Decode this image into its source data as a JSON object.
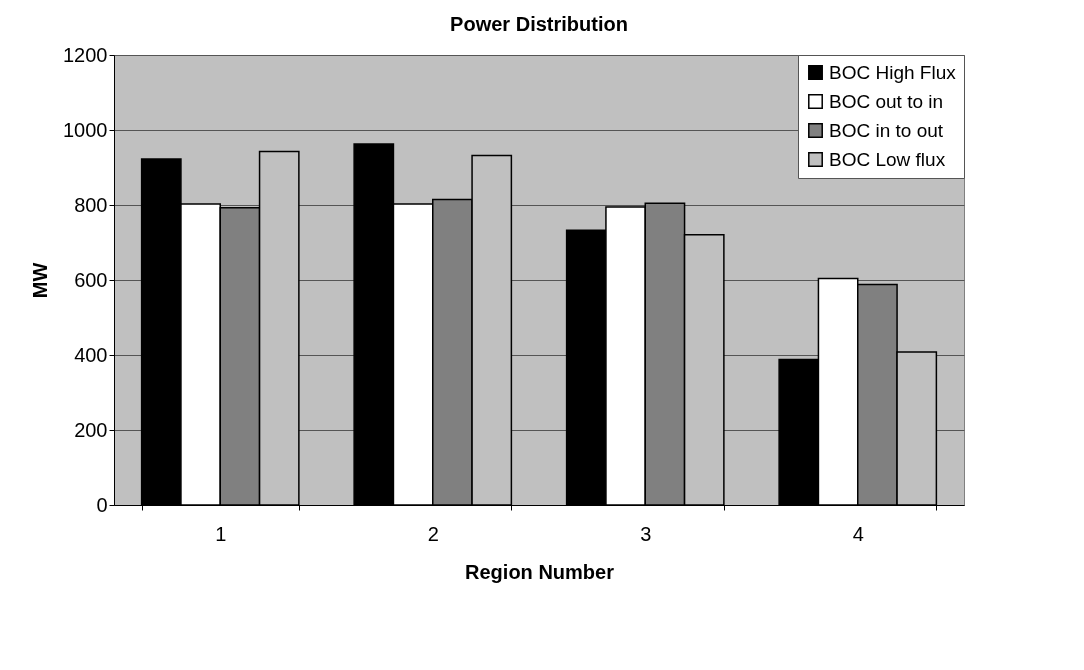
{
  "chart_data": {
    "type": "bar",
    "title": "Power Distribution",
    "xlabel": "Region Number",
    "ylabel": "MW",
    "categories": [
      "1",
      "2",
      "3",
      "4"
    ],
    "series": [
      {
        "name": "BOC High Flux",
        "color": "#000000",
        "values": [
          923,
          963,
          733,
          388
        ]
      },
      {
        "name": "BOC out to in",
        "color": "#ffffff",
        "values": [
          803,
          803,
          795,
          604
        ]
      },
      {
        "name": "BOC in to out",
        "color": "#808080",
        "values": [
          793,
          815,
          805,
          588
        ]
      },
      {
        "name": "BOC Low flux",
        "color": "#c0c0c0",
        "values": [
          943,
          932,
          721,
          408
        ]
      }
    ],
    "ylim": [
      0,
      1200
    ],
    "yticks": [
      0,
      200,
      400,
      600,
      800,
      1000,
      1200
    ],
    "grid": "y",
    "legend": "top right"
  }
}
